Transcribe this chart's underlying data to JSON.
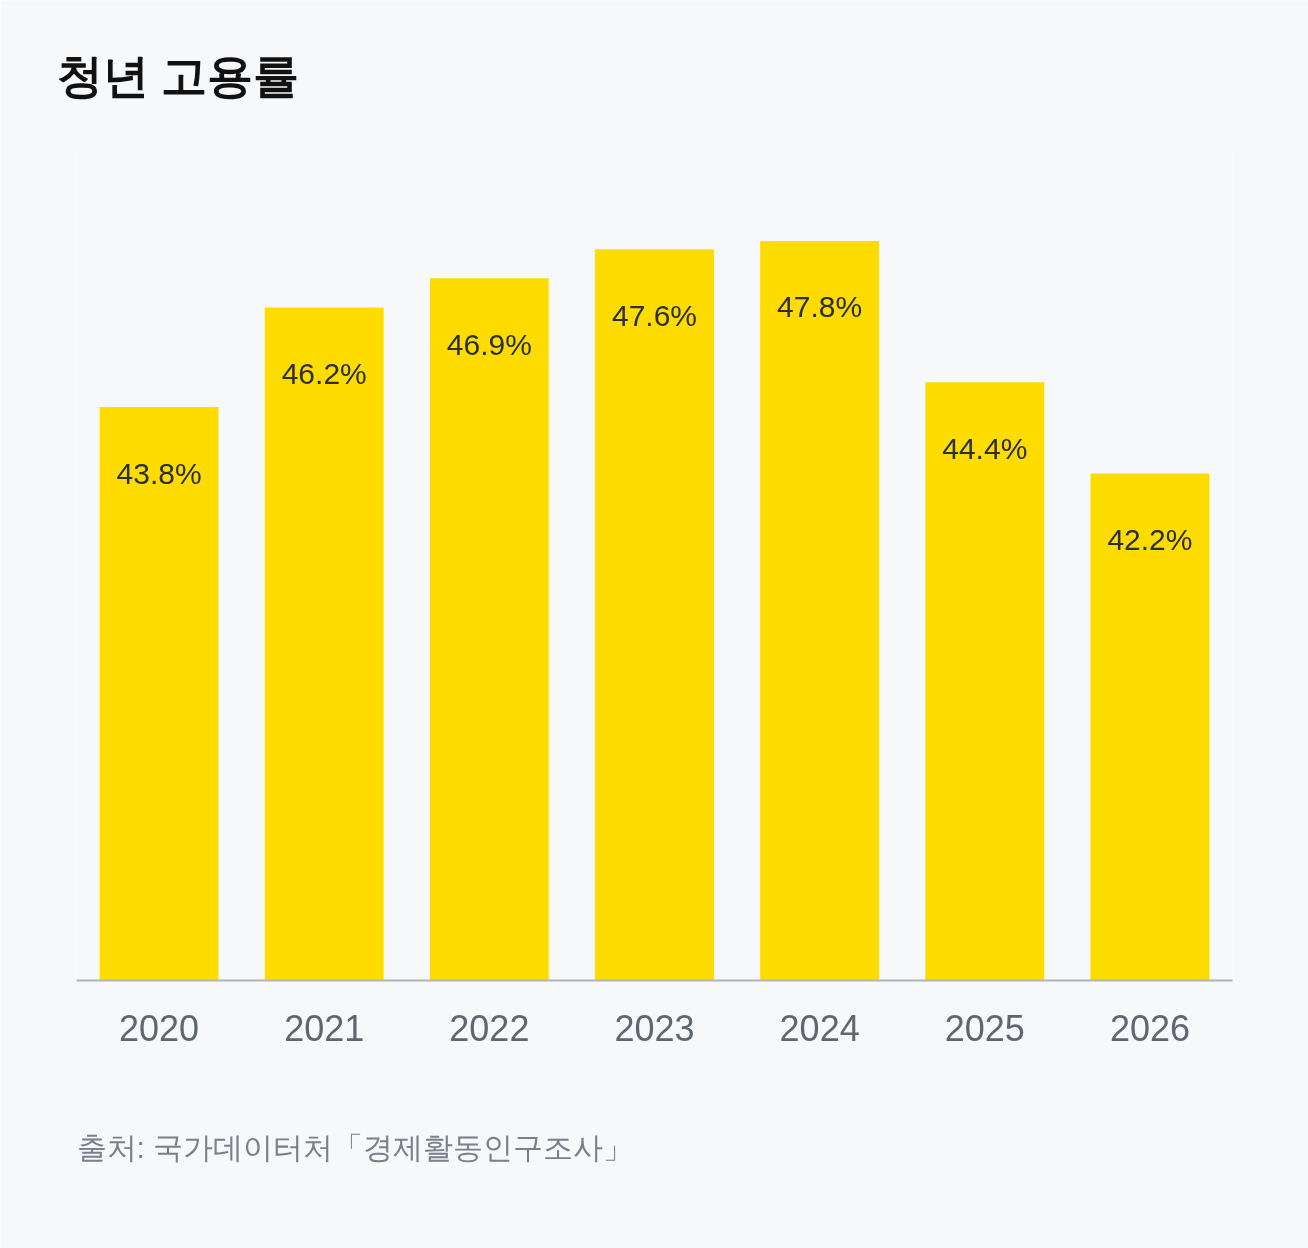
{
  "chart_data": {
    "type": "bar",
    "title": "청년 고용률",
    "categories": [
      "2020",
      "2021",
      "2022",
      "2023",
      "2024",
      "2025",
      "2026"
    ],
    "values": [
      43.8,
      46.2,
      46.9,
      47.6,
      47.8,
      44.4,
      42.2
    ],
    "value_labels": [
      "43.8%",
      "46.2%",
      "46.9%",
      "47.6%",
      "47.8%",
      "44.4%",
      "42.2%"
    ],
    "color": "#ffdc00",
    "ylim": [
      30,
      50
    ],
    "tick_labels": "x",
    "annotations": [
      "출처: 국가데이터처「경제활동인구조사」"
    ]
  }
}
